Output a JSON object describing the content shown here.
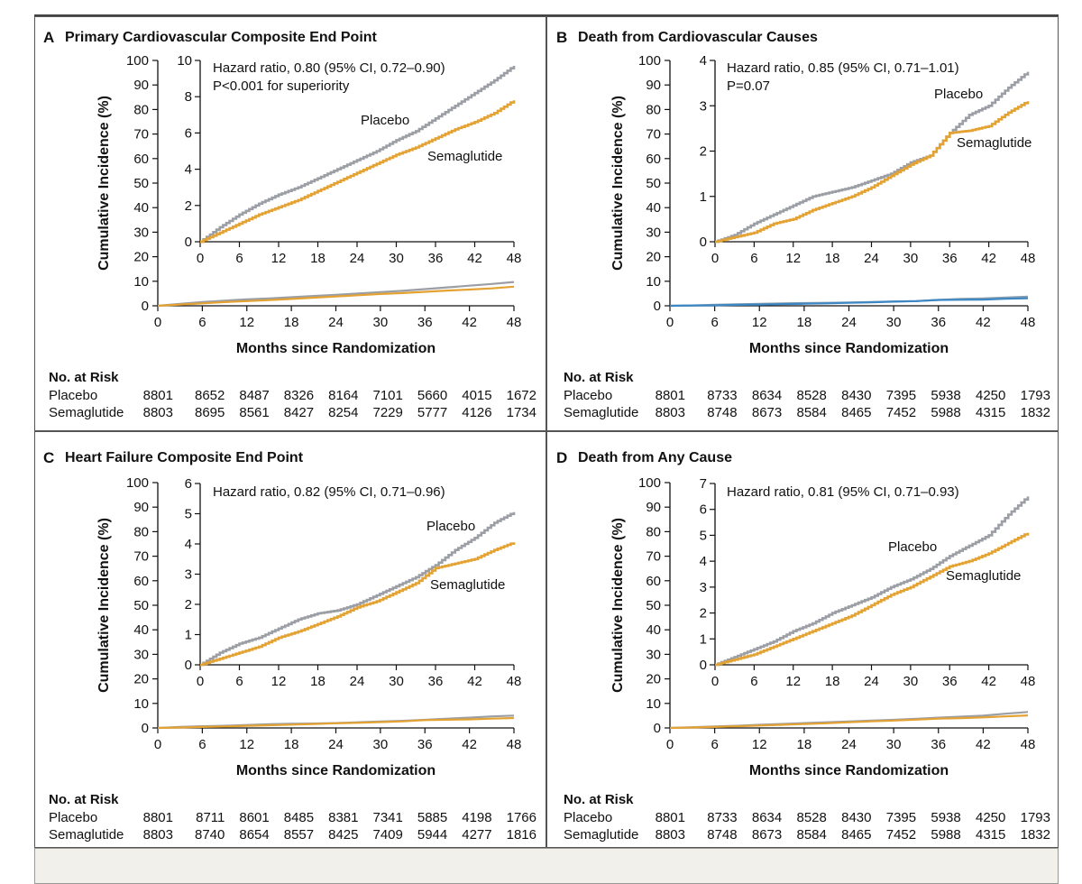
{
  "risk_header": "No. at Risk",
  "colors": {
    "placebo": "#9b9ea4",
    "semaglutide": "#e3a232",
    "blue_placebo": "#8a9fb0",
    "blue_sema": "#3d87c4"
  },
  "panels": [
    {
      "letter": "A",
      "title": "Primary Cardiovascular Composite End Point",
      "risk": {
        "rows": [
          {
            "label": "Placebo",
            "values": [
              "8801",
              "8652",
              "8487",
              "8326",
              "8164",
              "7101",
              "5660",
              "4015",
              "1672"
            ]
          },
          {
            "label": "Semaglutide",
            "values": [
              "8803",
              "8695",
              "8561",
              "8427",
              "8254",
              "7229",
              "5777",
              "4126",
              "1734"
            ]
          }
        ]
      }
    },
    {
      "letter": "B",
      "title": "Death from Cardiovascular Causes",
      "risk": {
        "rows": [
          {
            "label": "Placebo",
            "values": [
              "8801",
              "8733",
              "8634",
              "8528",
              "8430",
              "7395",
              "5938",
              "4250",
              "1793"
            ]
          },
          {
            "label": "Semaglutide",
            "values": [
              "8803",
              "8748",
              "8673",
              "8584",
              "8465",
              "7452",
              "5988",
              "4315",
              "1832"
            ]
          }
        ]
      }
    },
    {
      "letter": "C",
      "title": "Heart Failure Composite End Point",
      "risk": {
        "rows": [
          {
            "label": "Placebo",
            "values": [
              "8801",
              "8711",
              "8601",
              "8485",
              "8381",
              "7341",
              "5885",
              "4198",
              "1766"
            ]
          },
          {
            "label": "Semaglutide",
            "values": [
              "8803",
              "8740",
              "8654",
              "8557",
              "8425",
              "7409",
              "5944",
              "4277",
              "1816"
            ]
          }
        ]
      }
    },
    {
      "letter": "D",
      "title": "Death from Any Cause",
      "risk": {
        "rows": [
          {
            "label": "Placebo",
            "values": [
              "8801",
              "8733",
              "8634",
              "8528",
              "8430",
              "7395",
              "5938",
              "4250",
              "1793"
            ]
          },
          {
            "label": "Semaglutide",
            "values": [
              "8803",
              "8748",
              "8673",
              "8584",
              "8465",
              "7452",
              "5988",
              "4315",
              "1832"
            ]
          }
        ]
      }
    }
  ],
  "chart_data": [
    {
      "type": "line",
      "title": "Primary Cardiovascular Composite End Point",
      "xlabel": "Months since Randomization",
      "ylabel": "Cumulative Incidence (%)",
      "x_ticks": [
        0,
        6,
        12,
        18,
        24,
        30,
        36,
        42,
        48
      ],
      "xlim": [
        0,
        48
      ],
      "ylim": [
        0,
        100
      ],
      "y_ticks": [
        0,
        10,
        20,
        30,
        40,
        50,
        60,
        70,
        80,
        90,
        100
      ],
      "inset": {
        "ylim": [
          0,
          10
        ],
        "y_ticks": [
          0,
          2,
          4,
          6,
          8,
          10
        ],
        "annotations": [
          "Hazard ratio, 0.80 (95% CI, 0.72–0.90)",
          "P<0.001 for superiority"
        ],
        "labels": {
          "placebo": "Placebo",
          "semaglutide": "Semaglutide"
        }
      },
      "series": [
        {
          "name": "Placebo",
          "x": [
            0,
            3,
            6,
            9,
            12,
            15,
            18,
            21,
            24,
            27,
            30,
            33,
            36,
            39,
            42,
            45,
            48
          ],
          "values": [
            0,
            0.8,
            1.5,
            2.1,
            2.6,
            3.0,
            3.5,
            4.0,
            4.5,
            5.0,
            5.6,
            6.1,
            6.8,
            7.5,
            8.2,
            8.9,
            9.7
          ]
        },
        {
          "name": "Semaglutide",
          "x": [
            0,
            3,
            6,
            9,
            12,
            15,
            18,
            21,
            24,
            27,
            30,
            33,
            36,
            39,
            42,
            45,
            48
          ],
          "values": [
            0,
            0.5,
            1.0,
            1.5,
            1.9,
            2.3,
            2.8,
            3.3,
            3.8,
            4.3,
            4.8,
            5.2,
            5.7,
            6.2,
            6.6,
            7.1,
            7.8
          ]
        }
      ]
    },
    {
      "type": "line",
      "title": "Death from Cardiovascular Causes",
      "xlabel": "Months since Randomization",
      "ylabel": "Cumulative Incidence (%)",
      "x_ticks": [
        0,
        6,
        12,
        18,
        24,
        30,
        36,
        42,
        48
      ],
      "xlim": [
        0,
        48
      ],
      "ylim": [
        0,
        100
      ],
      "y_ticks": [
        0,
        10,
        20,
        30,
        40,
        50,
        60,
        70,
        80,
        90,
        100
      ],
      "inset": {
        "ylim": [
          0,
          4
        ],
        "y_ticks": [
          0,
          1,
          2,
          3,
          4
        ],
        "annotations": [
          "Hazard ratio, 0.85 (95% CI, 0.71–1.01)",
          "P=0.07"
        ],
        "labels": {
          "placebo": "Placebo",
          "semaglutide": "Semaglutide"
        }
      },
      "series": [
        {
          "name": "Placebo",
          "x": [
            0,
            3,
            6,
            9,
            12,
            15,
            18,
            21,
            24,
            27,
            30,
            33,
            36,
            39,
            42,
            45,
            48
          ],
          "values": [
            0,
            0.15,
            0.4,
            0.6,
            0.8,
            1.0,
            1.1,
            1.2,
            1.35,
            1.5,
            1.75,
            1.9,
            2.4,
            2.8,
            3.0,
            3.4,
            3.75
          ]
        },
        {
          "name": "Semaglutide",
          "x": [
            0,
            3,
            6,
            9,
            12,
            15,
            18,
            21,
            24,
            27,
            30,
            33,
            36,
            39,
            42,
            45,
            48
          ],
          "values": [
            0,
            0.1,
            0.2,
            0.4,
            0.5,
            0.7,
            0.85,
            1.0,
            1.2,
            1.45,
            1.7,
            1.9,
            2.4,
            2.45,
            2.55,
            2.85,
            3.1
          ]
        }
      ]
    },
    {
      "type": "line",
      "title": "Heart Failure Composite End Point",
      "xlabel": "Months since Randomization",
      "ylabel": "Cumulative Incidence (%)",
      "x_ticks": [
        0,
        6,
        12,
        18,
        24,
        30,
        36,
        42,
        48
      ],
      "xlim": [
        0,
        48
      ],
      "ylim": [
        0,
        100
      ],
      "y_ticks": [
        0,
        10,
        20,
        30,
        40,
        50,
        60,
        70,
        80,
        90,
        100
      ],
      "inset": {
        "ylim": [
          0,
          6
        ],
        "y_ticks": [
          0,
          1,
          2,
          3,
          4,
          5,
          6
        ],
        "annotations": [
          "Hazard ratio, 0.82 (95% CI, 0.71–0.96)"
        ],
        "labels": {
          "placebo": "Placebo",
          "semaglutide": "Semaglutide"
        }
      },
      "series": [
        {
          "name": "Placebo",
          "x": [
            0,
            3,
            6,
            9,
            12,
            15,
            18,
            21,
            24,
            27,
            30,
            33,
            36,
            39,
            42,
            45,
            48
          ],
          "values": [
            0,
            0.4,
            0.7,
            0.9,
            1.2,
            1.5,
            1.7,
            1.8,
            2.0,
            2.3,
            2.6,
            2.9,
            3.3,
            3.8,
            4.2,
            4.7,
            5.05
          ]
        },
        {
          "name": "Semaglutide",
          "x": [
            0,
            3,
            6,
            9,
            12,
            15,
            18,
            21,
            24,
            27,
            30,
            33,
            36,
            39,
            42,
            45,
            48
          ],
          "values": [
            0,
            0.2,
            0.4,
            0.6,
            0.9,
            1.1,
            1.35,
            1.6,
            1.9,
            2.1,
            2.4,
            2.7,
            3.2,
            3.35,
            3.5,
            3.8,
            4.05
          ]
        }
      ]
    },
    {
      "type": "line",
      "title": "Death from Any Cause",
      "xlabel": "Months since Randomization",
      "ylabel": "Cumulative Incidence (%)",
      "x_ticks": [
        0,
        6,
        12,
        18,
        24,
        30,
        36,
        42,
        48
      ],
      "xlim": [
        0,
        48
      ],
      "ylim": [
        0,
        100
      ],
      "y_ticks": [
        0,
        10,
        20,
        30,
        40,
        50,
        60,
        70,
        80,
        90,
        100
      ],
      "inset": {
        "ylim": [
          0,
          7
        ],
        "y_ticks": [
          0,
          1,
          2,
          3,
          4,
          5,
          6,
          7
        ],
        "annotations": [
          "Hazard ratio, 0.81 (95% CI, 0.71–0.93)"
        ],
        "labels": {
          "placebo": "Placebo",
          "semaglutide": "Semaglutide"
        }
      },
      "series": [
        {
          "name": "Placebo",
          "x": [
            0,
            3,
            6,
            9,
            12,
            15,
            18,
            21,
            24,
            27,
            30,
            33,
            36,
            39,
            42,
            45,
            48
          ],
          "values": [
            0,
            0.3,
            0.6,
            0.9,
            1.3,
            1.6,
            2.0,
            2.3,
            2.6,
            3.0,
            3.3,
            3.7,
            4.2,
            4.6,
            5.0,
            5.8,
            6.5
          ]
        },
        {
          "name": "Semaglutide",
          "x": [
            0,
            3,
            6,
            9,
            12,
            15,
            18,
            21,
            24,
            27,
            30,
            33,
            36,
            39,
            42,
            45,
            48
          ],
          "values": [
            0,
            0.2,
            0.4,
            0.7,
            1.0,
            1.3,
            1.6,
            1.9,
            2.3,
            2.7,
            3.0,
            3.4,
            3.8,
            4.0,
            4.3,
            4.7,
            5.1
          ]
        }
      ]
    }
  ]
}
